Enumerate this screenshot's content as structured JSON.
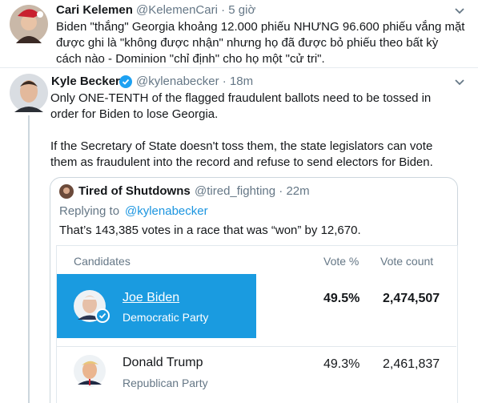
{
  "tweets": [
    {
      "name": "Cari Kelemen",
      "meta": "@KelemenCari · 5 giờ",
      "lines": [
        "Biden \"thắng\" Georgia khoảng 12.000 phiếu NHƯNG 96.600 phiếu vắng mặt",
        "được ghi là \"không được nhận\" nhưng họ đã được bỏ phiếu theo bất kỳ",
        "cách nào - Dominion \"chỉ định\" cho họ một \"cử tri\"."
      ]
    },
    {
      "name": "Kyle Becker",
      "meta": "@kylenabecker · 18m",
      "lines": [
        "Only ONE-TENTH of the flagged fraudulent ballots need to be tossed in",
        "order for Biden to lose Georgia.",
        "If the Secretary of State doesn't toss them, the state legislators can vote",
        "them as fraudulent into the record and refuse to send electors for Biden."
      ]
    }
  ],
  "quote": {
    "name": "Tired of Shutdowns",
    "meta": "@tired_fighting · 22m",
    "replying_to": "Replying to",
    "reply_handle": "@kylenabecker",
    "text": "That’s 143,385 votes in a race that was “won” by 12,670."
  },
  "results_table": {
    "headers": [
      "Candidates",
      "Vote %",
      "Vote count"
    ],
    "rows": [
      {
        "name": "Joe Biden",
        "party": "Democratic Party",
        "vote_pct": "49.5%",
        "vote_count": "2,474,507"
      },
      {
        "name": "Donald Trump",
        "party": "Republican Party",
        "vote_pct": "49.3%",
        "vote_count": "2,461,837"
      }
    ]
  }
}
